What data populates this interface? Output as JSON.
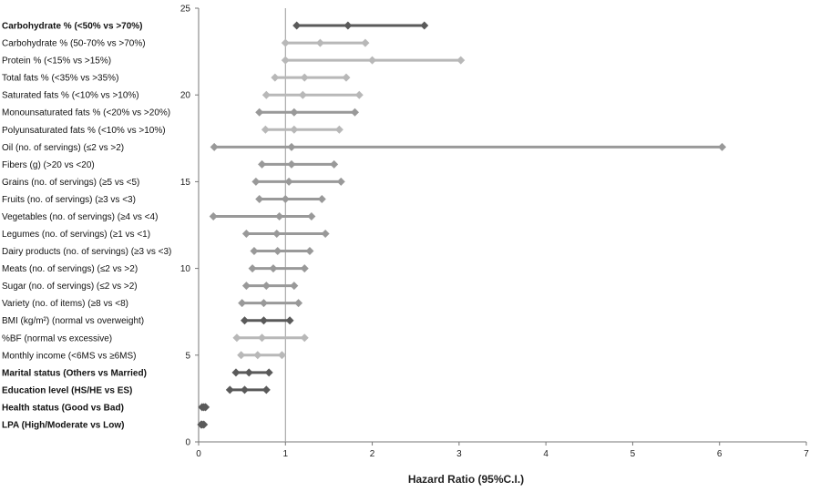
{
  "chart_data": {
    "type": "forest",
    "xlabel": "Hazard Ratio (95%C.I.)",
    "ylabel": "",
    "title": "",
    "xlim": [
      0,
      7
    ],
    "ylim": [
      0,
      25
    ],
    "xticks": [
      0,
      1,
      2,
      3,
      4,
      5,
      6,
      7
    ],
    "yticks": [
      0,
      5,
      10,
      15,
      20,
      25
    ],
    "reference_line_x": 1,
    "grid": false,
    "colors": {
      "dark": "#5a5a5a",
      "medium": "#999999",
      "light": "#b8b8b8",
      "axis": "#777777"
    },
    "rows": [
      {
        "label": "Carbohydrate % (<50% vs >70%)",
        "y": 24,
        "lo": 1.13,
        "hr": 1.72,
        "hi": 2.6,
        "bold": true,
        "shade": "dark"
      },
      {
        "label": "Carbohydrate % (50-70% vs >70%)",
        "y": 23,
        "lo": 1.0,
        "hr": 1.4,
        "hi": 1.92,
        "bold": false,
        "shade": "light"
      },
      {
        "label": "Protein % (<15% vs >15%)",
        "y": 22,
        "lo": 1.0,
        "hr": 2.0,
        "hi": 3.02,
        "bold": false,
        "shade": "light"
      },
      {
        "label": "Total fats % (<35% vs >35%)",
        "y": 21,
        "lo": 0.88,
        "hr": 1.22,
        "hi": 1.7,
        "bold": false,
        "shade": "light"
      },
      {
        "label": "Saturated fats % (<10% vs >10%)",
        "y": 20,
        "lo": 0.78,
        "hr": 1.2,
        "hi": 1.85,
        "bold": false,
        "shade": "light"
      },
      {
        "label": "Monounsaturated fats % (<20% vs >20%)",
        "y": 19,
        "lo": 0.7,
        "hr": 1.1,
        "hi": 1.8,
        "bold": false,
        "shade": "medium"
      },
      {
        "label": "Polyunsaturated fats % (<10% vs >10%)",
        "y": 18,
        "lo": 0.77,
        "hr": 1.1,
        "hi": 1.62,
        "bold": false,
        "shade": "light"
      },
      {
        "label": "Oil (no. of servings) (≤2 vs >2)",
        "y": 17,
        "lo": 0.18,
        "hr": 1.07,
        "hi": 6.03,
        "bold": false,
        "shade": "medium"
      },
      {
        "label": "Fibers (g) (>20 vs <20)",
        "y": 16,
        "lo": 0.73,
        "hr": 1.07,
        "hi": 1.56,
        "bold": false,
        "shade": "medium"
      },
      {
        "label": "Grains (no. of servings) (≥5 vs <5)",
        "y": 15,
        "lo": 0.66,
        "hr": 1.04,
        "hi": 1.64,
        "bold": false,
        "shade": "medium"
      },
      {
        "label": "Fruits (no. of servings) (≥3 vs <3)",
        "y": 14,
        "lo": 0.7,
        "hr": 1.0,
        "hi": 1.42,
        "bold": false,
        "shade": "medium"
      },
      {
        "label": "Vegetables (no. of servings) (≥4 vs <4)",
        "y": 13,
        "lo": 0.17,
        "hr": 0.93,
        "hi": 1.3,
        "bold": false,
        "shade": "medium"
      },
      {
        "label": "Legumes (no. of servings) (≥1 vs <1)",
        "y": 12,
        "lo": 0.55,
        "hr": 0.9,
        "hi": 1.46,
        "bold": false,
        "shade": "medium"
      },
      {
        "label": "Dairy products (no. of servings) (≥3 vs <3)",
        "y": 11,
        "lo": 0.64,
        "hr": 0.91,
        "hi": 1.28,
        "bold": false,
        "shade": "medium"
      },
      {
        "label": "Meats (no. of servings) (≤2 vs >2)",
        "y": 10,
        "lo": 0.62,
        "hr": 0.86,
        "hi": 1.22,
        "bold": false,
        "shade": "medium"
      },
      {
        "label": "Sugar (no. of servings) (≤2 vs >2)",
        "y": 9,
        "lo": 0.55,
        "hr": 0.78,
        "hi": 1.1,
        "bold": false,
        "shade": "medium"
      },
      {
        "label": "Variety (no. of items) (≥8 vs <8)",
        "y": 8,
        "lo": 0.5,
        "hr": 0.75,
        "hi": 1.15,
        "bold": false,
        "shade": "medium"
      },
      {
        "label": "BMI (kg/m²) (normal vs overweight)",
        "y": 7,
        "lo": 0.53,
        "hr": 0.75,
        "hi": 1.05,
        "bold": false,
        "shade": "dark"
      },
      {
        "label": "%BF (normal vs excessive)",
        "y": 6,
        "lo": 0.44,
        "hr": 0.73,
        "hi": 1.22,
        "bold": false,
        "shade": "light"
      },
      {
        "label": "Monthly income (<6MS vs ≥6MS)",
        "y": 5,
        "lo": 0.49,
        "hr": 0.68,
        "hi": 0.96,
        "bold": false,
        "shade": "light"
      },
      {
        "label": "Marital status (Others vs Married)",
        "y": 4,
        "lo": 0.43,
        "hr": 0.58,
        "hi": 0.81,
        "bold": true,
        "shade": "dark"
      },
      {
        "label": "Education level (HS/HE vs ES)",
        "y": 3,
        "lo": 0.36,
        "hr": 0.53,
        "hi": 0.78,
        "bold": true,
        "shade": "dark"
      },
      {
        "label": "Health status (Good vs Bad)",
        "y": 2,
        "lo": 0.04,
        "hr": 0.06,
        "hi": 0.08,
        "bold": true,
        "shade": "dark"
      },
      {
        "label": "LPA (High/Moderate vs Low)",
        "y": 1,
        "lo": 0.03,
        "hr": 0.04,
        "hi": 0.06,
        "bold": true,
        "shade": "dark"
      }
    ]
  }
}
